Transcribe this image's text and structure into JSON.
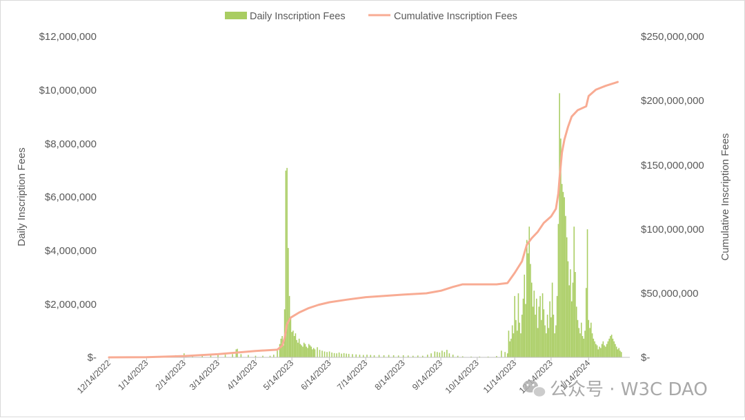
{
  "chart_data": {
    "type": "bar+line",
    "legend": {
      "position": "top",
      "series_names": [
        "Daily Inscription Fees",
        "Cumulative Inscription Fees"
      ]
    },
    "y_left": {
      "label": "Daily Inscription Fees",
      "min": 0,
      "max": 12000000,
      "ticks": [
        "$-",
        "$2,000,000",
        "$4,000,000",
        "$6,000,000",
        "$8,000,000",
        "$10,000,000",
        "$12,000,000"
      ]
    },
    "y_right": {
      "label": "Cumulative Inscription Fees",
      "min": 0,
      "max": 250000000,
      "ticks": [
        "$-",
        "$50,000,000",
        "$100,000,000",
        "$150,000,000",
        "$200,000,000",
        "$250,000,000"
      ]
    },
    "x_range": [
      "2022-12-14",
      "2024-02-17"
    ],
    "x_ticks": [
      "12/14/2022",
      "1/14/2023",
      "2/14/2023",
      "3/14/2023",
      "4/14/2023",
      "5/14/2023",
      "6/14/2023",
      "7/14/2023",
      "8/14/2023",
      "9/14/2023",
      "10/14/2023",
      "11/14/2023",
      "12/14/2023",
      "1/14/2024"
    ],
    "x_tick_dates": [
      "2022-12-14",
      "2023-01-14",
      "2023-02-14",
      "2023-03-14",
      "2023-04-14",
      "2023-05-14",
      "2023-06-14",
      "2023-07-14",
      "2023-08-14",
      "2023-09-14",
      "2023-10-14",
      "2023-11-14",
      "2023-12-14",
      "2024-01-14"
    ],
    "grid": false,
    "series": [
      {
        "name": "Daily Inscription Fees",
        "kind": "bar",
        "axis": "left",
        "color": "#a9cd62",
        "points": [
          [
            "2023-01-31",
            60000
          ],
          [
            "2023-02-07",
            80000
          ],
          [
            "2023-02-14",
            150000
          ],
          [
            "2023-02-21",
            70000
          ],
          [
            "2023-03-01",
            60000
          ],
          [
            "2023-03-08",
            80000
          ],
          [
            "2023-03-14",
            90000
          ],
          [
            "2023-03-20",
            100000
          ],
          [
            "2023-03-26",
            120000
          ],
          [
            "2023-03-29",
            300000
          ],
          [
            "2023-03-30",
            320000
          ],
          [
            "2023-04-02",
            120000
          ],
          [
            "2023-04-08",
            90000
          ],
          [
            "2023-04-14",
            60000
          ],
          [
            "2023-04-20",
            60000
          ],
          [
            "2023-04-26",
            60000
          ],
          [
            "2023-04-29",
            100000
          ],
          [
            "2023-05-02",
            250000
          ],
          [
            "2023-05-04",
            500000
          ],
          [
            "2023-05-05",
            700000
          ],
          [
            "2023-05-06",
            800000
          ],
          [
            "2023-05-07",
            450000
          ],
          [
            "2023-05-08",
            1800000
          ],
          [
            "2023-05-09",
            7000000
          ],
          [
            "2023-05-10",
            7100000
          ],
          [
            "2023-05-11",
            4100000
          ],
          [
            "2023-05-12",
            2300000
          ],
          [
            "2023-05-13",
            1500000
          ],
          [
            "2023-05-14",
            950000
          ],
          [
            "2023-05-15",
            1000000
          ],
          [
            "2023-05-16",
            800000
          ],
          [
            "2023-05-17",
            900000
          ],
          [
            "2023-05-18",
            650000
          ],
          [
            "2023-05-19",
            550000
          ],
          [
            "2023-05-20",
            700000
          ],
          [
            "2023-05-21",
            500000
          ],
          [
            "2023-05-22",
            450000
          ],
          [
            "2023-05-23",
            400000
          ],
          [
            "2023-05-24",
            550000
          ],
          [
            "2023-05-25",
            500000
          ],
          [
            "2023-05-26",
            400000
          ],
          [
            "2023-05-27",
            350000
          ],
          [
            "2023-05-28",
            500000
          ],
          [
            "2023-05-29",
            450000
          ],
          [
            "2023-05-30",
            400000
          ],
          [
            "2023-05-31",
            300000
          ],
          [
            "2023-06-01",
            350000
          ],
          [
            "2023-06-02",
            300000
          ],
          [
            "2023-06-04",
            380000
          ],
          [
            "2023-06-06",
            280000
          ],
          [
            "2023-06-08",
            250000
          ],
          [
            "2023-06-10",
            220000
          ],
          [
            "2023-06-12",
            200000
          ],
          [
            "2023-06-14",
            220000
          ],
          [
            "2023-06-16",
            180000
          ],
          [
            "2023-06-18",
            160000
          ],
          [
            "2023-06-20",
            150000
          ],
          [
            "2023-06-22",
            180000
          ],
          [
            "2023-06-24",
            140000
          ],
          [
            "2023-06-26",
            160000
          ],
          [
            "2023-06-28",
            140000
          ],
          [
            "2023-06-30",
            130000
          ],
          [
            "2023-07-03",
            120000
          ],
          [
            "2023-07-06",
            110000
          ],
          [
            "2023-07-09",
            100000
          ],
          [
            "2023-07-12",
            90000
          ],
          [
            "2023-07-15",
            100000
          ],
          [
            "2023-07-18",
            90000
          ],
          [
            "2023-07-21",
            80000
          ],
          [
            "2023-07-25",
            90000
          ],
          [
            "2023-07-29",
            80000
          ],
          [
            "2023-08-02",
            90000
          ],
          [
            "2023-08-06",
            80000
          ],
          [
            "2023-08-10",
            70000
          ],
          [
            "2023-08-14",
            80000
          ],
          [
            "2023-08-18",
            70000
          ],
          [
            "2023-08-22",
            60000
          ],
          [
            "2023-08-26",
            70000
          ],
          [
            "2023-08-30",
            60000
          ],
          [
            "2023-09-03",
            100000
          ],
          [
            "2023-09-06",
            150000
          ],
          [
            "2023-09-09",
            220000
          ],
          [
            "2023-09-11",
            200000
          ],
          [
            "2023-09-13",
            180000
          ],
          [
            "2023-09-15",
            250000
          ],
          [
            "2023-09-17",
            200000
          ],
          [
            "2023-09-19",
            280000
          ],
          [
            "2023-09-21",
            150000
          ],
          [
            "2023-09-24",
            100000
          ],
          [
            "2023-09-28",
            60000
          ],
          [
            "2023-10-02",
            40000
          ],
          [
            "2023-10-09",
            30000
          ],
          [
            "2023-10-16",
            30000
          ],
          [
            "2023-10-23",
            30000
          ],
          [
            "2023-10-30",
            50000
          ],
          [
            "2023-11-03",
            250000
          ],
          [
            "2023-11-06",
            200000
          ],
          [
            "2023-11-08",
            150000
          ],
          [
            "2023-11-09",
            1000000
          ],
          [
            "2023-11-10",
            600000
          ],
          [
            "2023-11-11",
            700000
          ],
          [
            "2023-11-12",
            1200000
          ],
          [
            "2023-11-13",
            900000
          ],
          [
            "2023-11-14",
            2300000
          ],
          [
            "2023-11-15",
            1400000
          ],
          [
            "2023-11-16",
            1000000
          ],
          [
            "2023-11-17",
            2400000
          ],
          [
            "2023-11-18",
            1300000
          ],
          [
            "2023-11-19",
            900000
          ],
          [
            "2023-11-20",
            1600000
          ],
          [
            "2023-11-21",
            2200000
          ],
          [
            "2023-11-22",
            3100000
          ],
          [
            "2023-11-23",
            2000000
          ],
          [
            "2023-11-24",
            4400000
          ],
          [
            "2023-11-25",
            3900000
          ],
          [
            "2023-11-26",
            4900000
          ],
          [
            "2023-11-27",
            3500000
          ],
          [
            "2023-11-28",
            2800000
          ],
          [
            "2023-11-29",
            1900000
          ],
          [
            "2023-11-30",
            2500000
          ],
          [
            "2023-12-01",
            1600000
          ],
          [
            "2023-12-02",
            2200000
          ],
          [
            "2023-12-03",
            1100000
          ],
          [
            "2023-12-04",
            1900000
          ],
          [
            "2023-12-05",
            2300000
          ],
          [
            "2023-12-06",
            1400000
          ],
          [
            "2023-12-07",
            2400000
          ],
          [
            "2023-12-08",
            1800000
          ],
          [
            "2023-12-09",
            1200000
          ],
          [
            "2023-12-10",
            900000
          ],
          [
            "2023-12-11",
            1600000
          ],
          [
            "2023-12-12",
            1100000
          ],
          [
            "2023-12-13",
            2100000
          ],
          [
            "2023-12-14",
            1500000
          ],
          [
            "2023-12-15",
            2800000
          ],
          [
            "2023-12-16",
            1600000
          ],
          [
            "2023-12-17",
            900000
          ],
          [
            "2023-12-18",
            1200000
          ],
          [
            "2023-12-19",
            2300000
          ],
          [
            "2023-12-20",
            5000000
          ],
          [
            "2023-12-21",
            9900000
          ],
          [
            "2023-12-22",
            8200000
          ],
          [
            "2023-12-23",
            6500000
          ],
          [
            "2023-12-24",
            6200000
          ],
          [
            "2023-12-25",
            6000000
          ],
          [
            "2023-12-26",
            5300000
          ],
          [
            "2023-12-27",
            4500000
          ],
          [
            "2023-12-28",
            3600000
          ],
          [
            "2023-12-29",
            2700000
          ],
          [
            "2023-12-30",
            3300000
          ],
          [
            "2023-12-31",
            2100000
          ],
          [
            "2024-01-01",
            2800000
          ],
          [
            "2024-01-02",
            4900000
          ],
          [
            "2024-01-03",
            3200000
          ],
          [
            "2024-01-04",
            1900000
          ],
          [
            "2024-01-05",
            1400000
          ],
          [
            "2024-01-06",
            1100000
          ],
          [
            "2024-01-07",
            900000
          ],
          [
            "2024-01-08",
            1300000
          ],
          [
            "2024-01-09",
            800000
          ],
          [
            "2024-01-10",
            700000
          ],
          [
            "2024-01-11",
            1000000
          ],
          [
            "2024-01-12",
            2600000
          ],
          [
            "2024-01-13",
            4800000
          ],
          [
            "2024-01-14",
            1400000
          ],
          [
            "2024-01-15",
            1100000
          ],
          [
            "2024-01-16",
            1300000
          ],
          [
            "2024-01-17",
            900000
          ],
          [
            "2024-01-18",
            700000
          ],
          [
            "2024-01-19",
            600000
          ],
          [
            "2024-01-20",
            500000
          ],
          [
            "2024-01-21",
            450000
          ],
          [
            "2024-01-22",
            300000
          ],
          [
            "2024-01-23",
            400000
          ],
          [
            "2024-01-24",
            350000
          ],
          [
            "2024-01-25",
            500000
          ],
          [
            "2024-01-26",
            600000
          ],
          [
            "2024-01-27",
            450000
          ],
          [
            "2024-01-28",
            400000
          ],
          [
            "2024-01-29",
            500000
          ],
          [
            "2024-01-30",
            600000
          ],
          [
            "2024-01-31",
            700000
          ],
          [
            "2024-02-01",
            800000
          ],
          [
            "2024-02-02",
            850000
          ],
          [
            "2024-02-03",
            700000
          ],
          [
            "2024-02-04",
            600000
          ],
          [
            "2024-02-05",
            500000
          ],
          [
            "2024-02-06",
            400000
          ],
          [
            "2024-02-07",
            300000
          ],
          [
            "2024-02-08",
            350000
          ],
          [
            "2024-02-09",
            250000
          ],
          [
            "2024-02-10",
            200000
          ]
        ]
      },
      {
        "name": "Cumulative Inscription Fees",
        "kind": "line",
        "axis": "right",
        "color": "#f8ab93",
        "points": [
          [
            "2022-12-14",
            0
          ],
          [
            "2023-01-14",
            100000
          ],
          [
            "2023-02-14",
            1000000
          ],
          [
            "2023-03-14",
            2500000
          ],
          [
            "2023-04-14",
            5000000
          ],
          [
            "2023-05-02",
            6000000
          ],
          [
            "2023-05-06",
            9000000
          ],
          [
            "2023-05-08",
            15000000
          ],
          [
            "2023-05-10",
            26000000
          ],
          [
            "2023-05-13",
            31000000
          ],
          [
            "2023-05-20",
            35000000
          ],
          [
            "2023-05-28",
            38500000
          ],
          [
            "2023-06-05",
            41000000
          ],
          [
            "2023-06-14",
            43000000
          ],
          [
            "2023-06-28",
            45000000
          ],
          [
            "2023-07-14",
            47000000
          ],
          [
            "2023-08-14",
            49000000
          ],
          [
            "2023-09-02",
            50000000
          ],
          [
            "2023-09-14",
            52000000
          ],
          [
            "2023-09-24",
            55000000
          ],
          [
            "2023-10-02",
            57000000
          ],
          [
            "2023-10-14",
            57000000
          ],
          [
            "2023-10-30",
            57000000
          ],
          [
            "2023-11-08",
            58000000
          ],
          [
            "2023-11-14",
            66000000
          ],
          [
            "2023-11-20",
            75000000
          ],
          [
            "2023-11-24",
            88000000
          ],
          [
            "2023-11-28",
            93000000
          ],
          [
            "2023-12-03",
            98000000
          ],
          [
            "2023-12-08",
            105000000
          ],
          [
            "2023-12-14",
            110000000
          ],
          [
            "2023-12-18",
            116000000
          ],
          [
            "2023-12-20",
            128000000
          ],
          [
            "2023-12-21",
            140000000
          ],
          [
            "2023-12-23",
            160000000
          ],
          [
            "2023-12-25",
            170000000
          ],
          [
            "2023-12-28",
            180000000
          ],
          [
            "2023-12-31",
            188000000
          ],
          [
            "2024-01-05",
            193000000
          ],
          [
            "2024-01-12",
            196000000
          ],
          [
            "2024-01-14",
            204000000
          ],
          [
            "2024-01-20",
            209000000
          ],
          [
            "2024-01-28",
            212000000
          ],
          [
            "2024-02-07",
            215000000
          ]
        ]
      }
    ],
    "watermark": "公众号 · W3C DAO"
  }
}
